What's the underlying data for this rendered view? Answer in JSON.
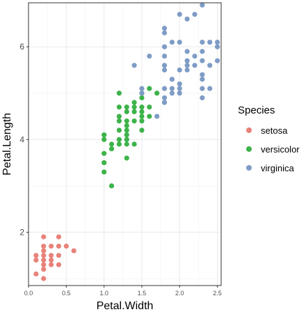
{
  "chart_data": {
    "type": "scatter",
    "title": "",
    "xlabel": "Petal.Width",
    "ylabel": "Petal.Length",
    "xlim": [
      0,
      2.55
    ],
    "ylim": [
      0.85,
      6.95
    ],
    "x_ticks": [
      0,
      0.5,
      1,
      1.5,
      2,
      2.5
    ],
    "x_tick_labels": [
      "0.0",
      "0.5",
      "1.0",
      "1.5",
      "2.0",
      "2.5"
    ],
    "y_ticks": [
      2,
      4,
      6
    ],
    "y_tick_labels": [
      "2",
      "4",
      "6"
    ],
    "grid": true,
    "legend": {
      "title": "Species",
      "position": "right"
    },
    "series": [
      {
        "name": "setosa",
        "color": "#E8827A",
        "points": [
          [
            0.1,
            1.1
          ],
          [
            0.1,
            1.4
          ],
          [
            0.1,
            1.5
          ],
          [
            0.2,
            1.0
          ],
          [
            0.2,
            1.2
          ],
          [
            0.2,
            1.3
          ],
          [
            0.2,
            1.4
          ],
          [
            0.2,
            1.5
          ],
          [
            0.2,
            1.6
          ],
          [
            0.2,
            1.7
          ],
          [
            0.2,
            1.9
          ],
          [
            0.3,
            1.3
          ],
          [
            0.3,
            1.4
          ],
          [
            0.3,
            1.5
          ],
          [
            0.3,
            1.7
          ],
          [
            0.4,
            1.3
          ],
          [
            0.4,
            1.5
          ],
          [
            0.4,
            1.7
          ],
          [
            0.4,
            1.9
          ],
          [
            0.5,
            1.7
          ],
          [
            0.6,
            1.6
          ]
        ]
      },
      {
        "name": "versicolor",
        "color": "#3DB34A",
        "points": [
          [
            1.0,
            3.3
          ],
          [
            1.0,
            3.5
          ],
          [
            1.0,
            3.7
          ],
          [
            1.0,
            4.0
          ],
          [
            1.0,
            4.1
          ],
          [
            1.1,
            3.0
          ],
          [
            1.1,
            3.8
          ],
          [
            1.1,
            3.9
          ],
          [
            1.2,
            3.9
          ],
          [
            1.2,
            4.0
          ],
          [
            1.2,
            4.2
          ],
          [
            1.2,
            4.4
          ],
          [
            1.2,
            4.5
          ],
          [
            1.2,
            4.7
          ],
          [
            1.2,
            5.0
          ],
          [
            1.3,
            3.6
          ],
          [
            1.3,
            3.9
          ],
          [
            1.3,
            4.0
          ],
          [
            1.3,
            4.1
          ],
          [
            1.3,
            4.2
          ],
          [
            1.3,
            4.3
          ],
          [
            1.3,
            4.4
          ],
          [
            1.3,
            4.6
          ],
          [
            1.3,
            4.7
          ],
          [
            1.4,
            3.9
          ],
          [
            1.4,
            4.4
          ],
          [
            1.4,
            4.6
          ],
          [
            1.4,
            4.7
          ],
          [
            1.4,
            4.8
          ],
          [
            1.5,
            4.2
          ],
          [
            1.5,
            4.4
          ],
          [
            1.5,
            4.5
          ],
          [
            1.5,
            4.6
          ],
          [
            1.5,
            4.7
          ],
          [
            1.5,
            4.9
          ],
          [
            1.5,
            5.0
          ],
          [
            1.6,
            4.5
          ],
          [
            1.6,
            4.7
          ],
          [
            1.6,
            5.1
          ],
          [
            1.7,
            5.0
          ],
          [
            1.8,
            4.8
          ]
        ]
      },
      {
        "name": "virginica",
        "color": "#7F9CC6",
        "points": [
          [
            1.4,
            5.6
          ],
          [
            1.5,
            5.0
          ],
          [
            1.5,
            5.1
          ],
          [
            1.6,
            5.8
          ],
          [
            1.7,
            4.5
          ],
          [
            1.8,
            4.8
          ],
          [
            1.8,
            4.9
          ],
          [
            1.8,
            5.1
          ],
          [
            1.8,
            5.5
          ],
          [
            1.8,
            5.6
          ],
          [
            1.8,
            5.8
          ],
          [
            1.8,
            6.0
          ],
          [
            1.8,
            6.3
          ],
          [
            1.8,
            6.4
          ],
          [
            1.9,
            5.0
          ],
          [
            1.9,
            5.1
          ],
          [
            1.9,
            5.3
          ],
          [
            1.9,
            6.1
          ],
          [
            2.0,
            5.0
          ],
          [
            2.0,
            5.1
          ],
          [
            2.0,
            5.2
          ],
          [
            2.0,
            5.5
          ],
          [
            2.0,
            6.1
          ],
          [
            2.0,
            6.7
          ],
          [
            2.1,
            5.5
          ],
          [
            2.1,
            5.6
          ],
          [
            2.1,
            5.7
          ],
          [
            2.1,
            5.9
          ],
          [
            2.1,
            6.6
          ],
          [
            2.2,
            5.6
          ],
          [
            2.2,
            5.8
          ],
          [
            2.2,
            6.7
          ],
          [
            2.3,
            4.9
          ],
          [
            2.3,
            5.1
          ],
          [
            2.3,
            5.3
          ],
          [
            2.3,
            5.4
          ],
          [
            2.3,
            5.7
          ],
          [
            2.3,
            5.9
          ],
          [
            2.3,
            6.1
          ],
          [
            2.3,
            6.9
          ],
          [
            2.4,
            5.1
          ],
          [
            2.4,
            5.6
          ],
          [
            2.4,
            6.1
          ],
          [
            2.5,
            5.7
          ],
          [
            2.5,
            6.0
          ],
          [
            2.5,
            6.1
          ]
        ]
      }
    ]
  }
}
